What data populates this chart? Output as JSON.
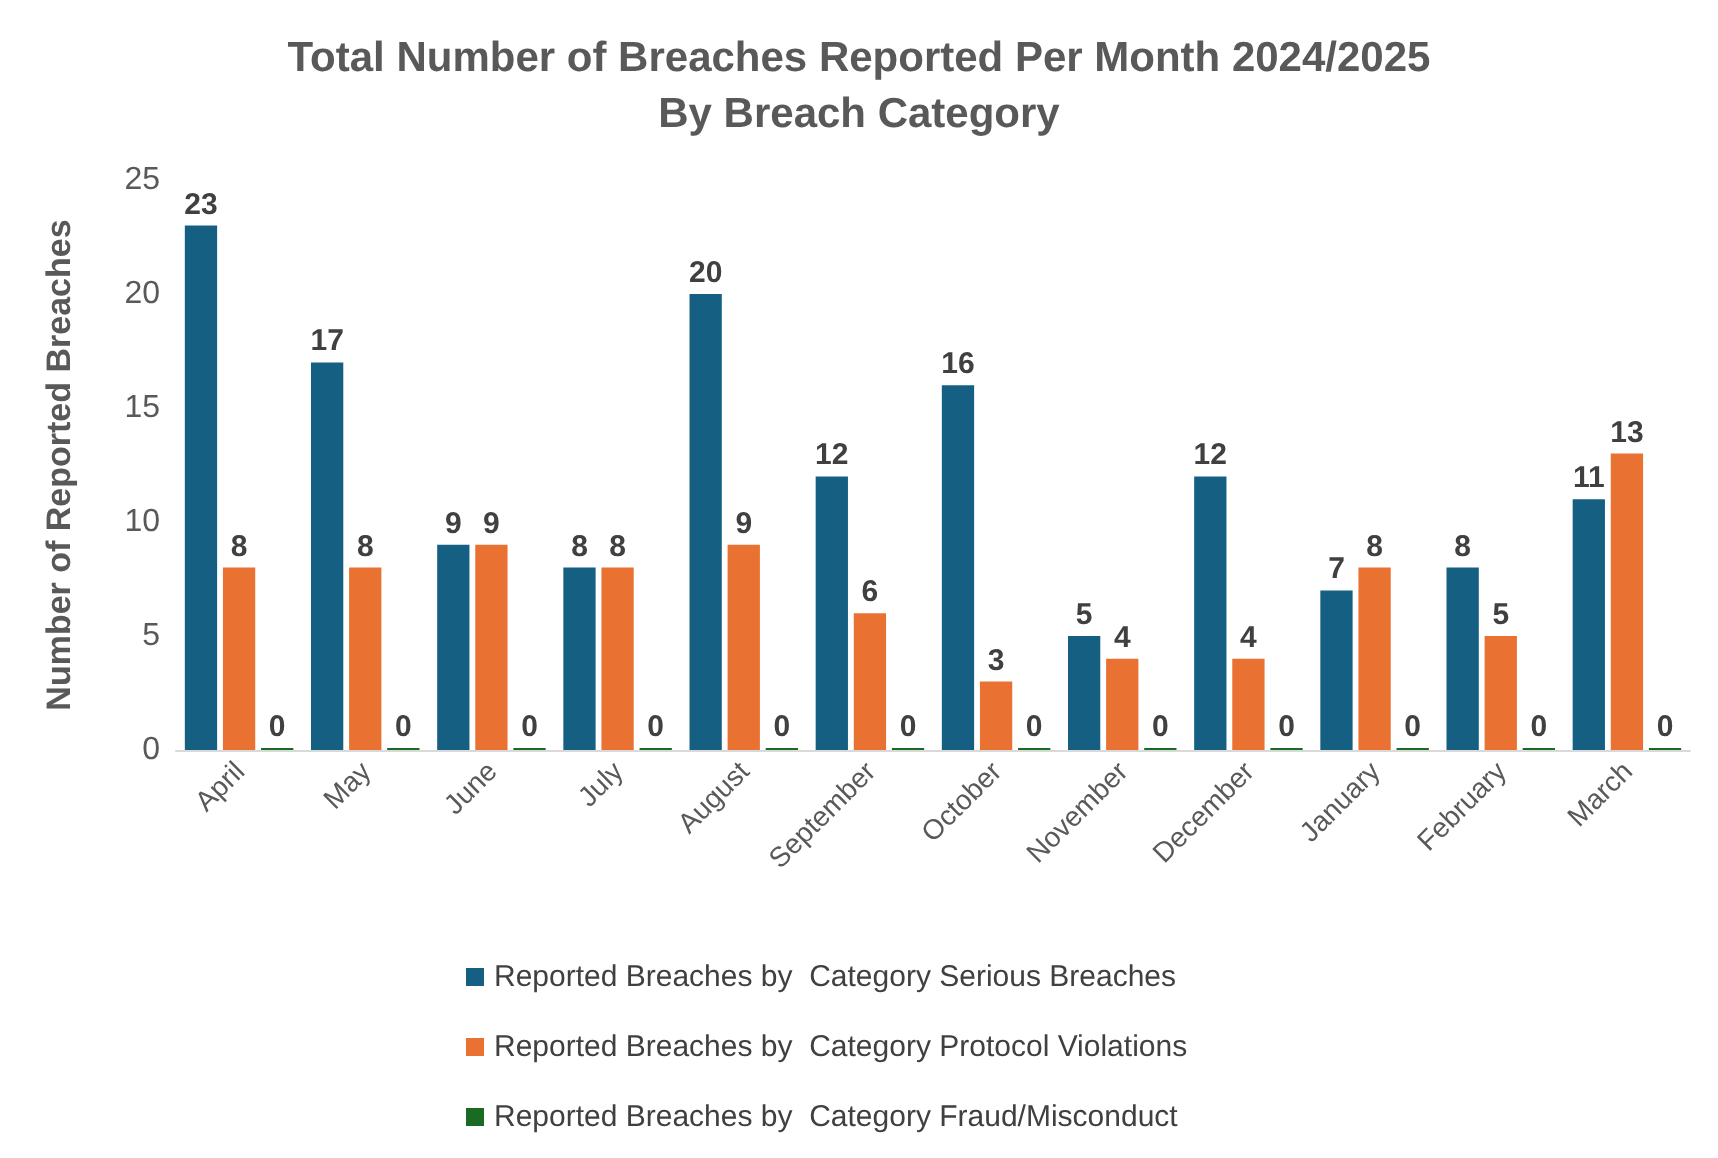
{
  "chart_data": {
    "type": "bar",
    "title": "Total Number of Breaches Reported Per Month 2024/2025\nBy Breach Category",
    "ylabel": "Number of Reported Breaches",
    "categories": [
      "April",
      "May",
      "June",
      "July",
      "August",
      "September",
      "October",
      "November",
      "December",
      "January",
      "February",
      "March"
    ],
    "series": [
      {
        "name": "Reported Breaches by  Category Serious Breaches",
        "color": "#156082",
        "values": [
          23,
          17,
          9,
          8,
          20,
          12,
          16,
          5,
          12,
          7,
          8,
          11
        ]
      },
      {
        "name": "Reported Breaches by  Category Protocol Violations",
        "color": "#e97132",
        "values": [
          8,
          8,
          9,
          8,
          9,
          6,
          3,
          4,
          4,
          8,
          5,
          13
        ]
      },
      {
        "name": "Reported Breaches by  Category Fraud/Misconduct",
        "color": "#196b24",
        "values": [
          0,
          0,
          0,
          0,
          0,
          0,
          0,
          0,
          0,
          0,
          0,
          0
        ]
      }
    ],
    "ylim": [
      0,
      25
    ],
    "yticks": [
      0,
      5,
      10,
      15,
      20,
      25
    ],
    "grid": false,
    "legend": "bottom",
    "data_labels": true
  }
}
